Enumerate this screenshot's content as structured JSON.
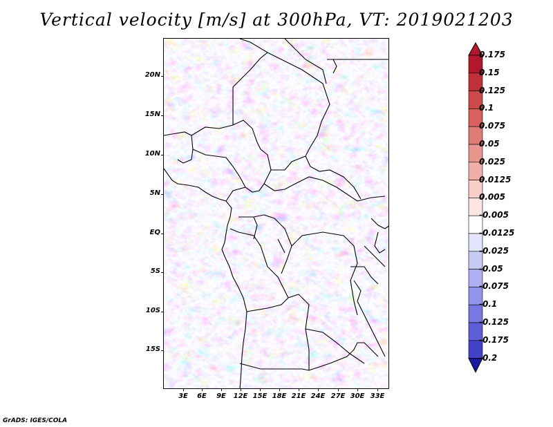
{
  "title": "Vertical velocity [m/s] at 300hPa, VT: 2019021203",
  "credit": "GrADS: IGES/COLA",
  "colorbar": {
    "levels": [
      {
        "label": "0.175",
        "color": "#b2182b"
      },
      {
        "label": "0.15",
        "color": "#c0303a"
      },
      {
        "label": "0.125",
        "color": "#cc4a4a"
      },
      {
        "label": "0.1",
        "color": "#d8605e"
      },
      {
        "label": "0.075",
        "color": "#e07a76"
      },
      {
        "label": "0.05",
        "color": "#e9958f"
      },
      {
        "label": "0.025",
        "color": "#f0b0a9"
      },
      {
        "label": "0.0125",
        "color": "#f6cdc7"
      },
      {
        "label": "0.005",
        "color": "#fbe6e3"
      },
      {
        "label": "-0.005",
        "color": "#ffffff"
      },
      {
        "label": "-0.0125",
        "color": "#e4e4fb"
      },
      {
        "label": "-0.025",
        "color": "#c9c9f5"
      },
      {
        "label": "-0.05",
        "color": "#aeaef0"
      },
      {
        "label": "-0.075",
        "color": "#9393e9"
      },
      {
        "label": "-0.1",
        "color": "#7878e0"
      },
      {
        "label": "-0.125",
        "color": "#5e5ed6"
      },
      {
        "label": "-0.175",
        "color": "#4242c7"
      },
      {
        "label": "-0.2",
        "color": "#2a2ab5"
      }
    ],
    "bottom_color": "#1a1aa0",
    "top_color": "#b2182b"
  },
  "lat_ticks": [
    "20N",
    "15N",
    "10N",
    "5N",
    "EQ",
    "5S",
    "10S",
    "15S"
  ],
  "lon_ticks": [
    "3E",
    "6E",
    "9E",
    "12E",
    "15E",
    "18E",
    "21E",
    "24E",
    "27E",
    "30E",
    "33E"
  ]
}
